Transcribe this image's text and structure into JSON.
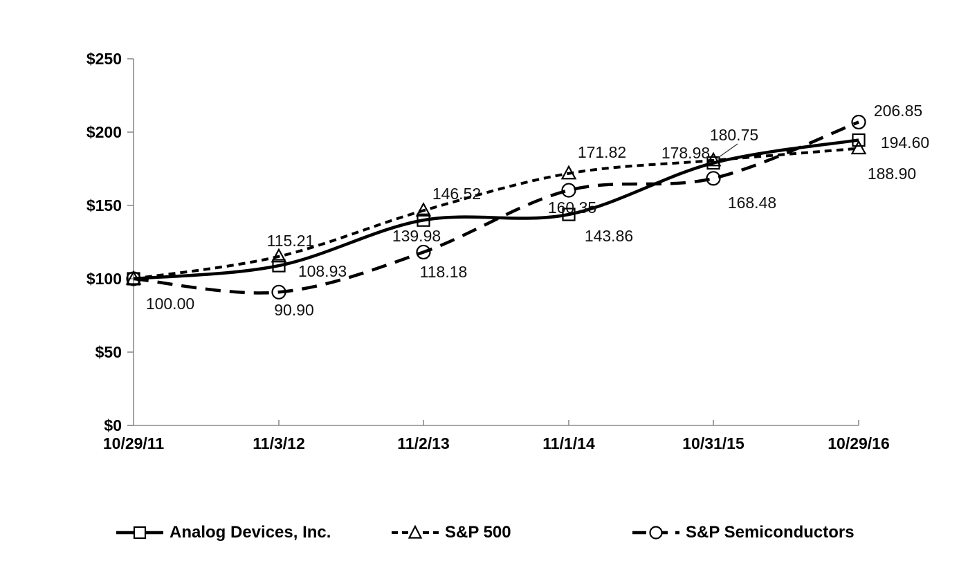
{
  "chart_data": {
    "type": "line",
    "title": "",
    "x": [
      "10/29/11",
      "11/3/12",
      "11/2/13",
      "11/1/14",
      "10/31/15",
      "10/29/16"
    ],
    "y_ticks": [
      "$0",
      "$50",
      "$100",
      "$150",
      "$200",
      "$250"
    ],
    "ylim": [
      0,
      250
    ],
    "grid": false,
    "legend_position": "bottom",
    "colors": {
      "line": "#000000",
      "axis": "#8c8c8c",
      "background": "#ffffff",
      "label_text": "#111111"
    },
    "series": [
      {
        "name": "Analog Devices, Inc.",
        "marker": "square",
        "line_style": "solid",
        "values": [
          100.0,
          108.93,
          139.98,
          143.86,
          178.98,
          194.6
        ],
        "value_labels": [
          "100.00",
          "108.93",
          "139.98",
          "143.86",
          "178.98",
          "194.60"
        ]
      },
      {
        "name": "S&P 500",
        "marker": "triangle",
        "line_style": "short-dash",
        "values": [
          100.0,
          115.21,
          146.52,
          171.82,
          180.75,
          188.9
        ],
        "value_labels": [
          null,
          "115.21",
          "146.52",
          "171.82",
          "180.75",
          "188.90"
        ]
      },
      {
        "name": "S&P Semiconductors",
        "marker": "circle",
        "line_style": "long-dash",
        "values": [
          100.0,
          90.9,
          118.18,
          160.35,
          168.48,
          206.85
        ],
        "value_labels": [
          null,
          "90.90",
          "118.18",
          "160.35",
          "168.48",
          "206.85"
        ]
      }
    ]
  }
}
